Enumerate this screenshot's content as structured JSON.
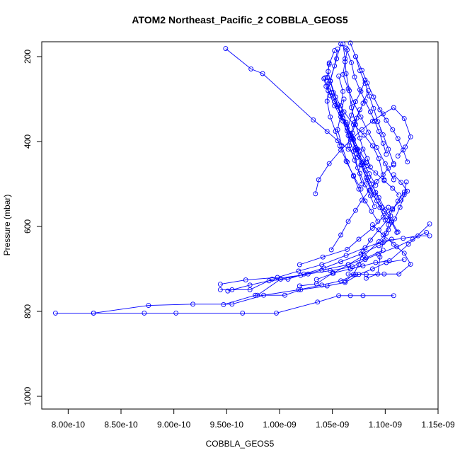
{
  "chart_data": {
    "type": "line",
    "title": "ATOM2 Northeast_Pacific_2 COBBLA_GEOS5",
    "xlabel": "COBBLA_GEOS5",
    "ylabel": "Pressure (mbar)",
    "xlim": [
      7.75e-10,
      1.15e-09
    ],
    "ylim": [
      1030,
      165
    ],
    "y_reversed": true,
    "x_ticks": [
      {
        "value": 8e-10,
        "label": "8.00e-10"
      },
      {
        "value": 8.5e-10,
        "label": "8.50e-10"
      },
      {
        "value": 9e-10,
        "label": "9.00e-10"
      },
      {
        "value": 9.5e-10,
        "label": "9.50e-10"
      },
      {
        "value": 1e-09,
        "label": "1.00e-09"
      },
      {
        "value": 1.05e-09,
        "label": "1.05e-09"
      },
      {
        "value": 1.1e-09,
        "label": "1.10e-09"
      },
      {
        "value": 1.15e-09,
        "label": "1.15e-09"
      }
    ],
    "y_ticks": [
      {
        "value": 200,
        "label": "200"
      },
      {
        "value": 400,
        "label": "400"
      },
      {
        "value": 600,
        "label": "600"
      },
      {
        "value": 800,
        "label": "800"
      },
      {
        "value": 1000,
        "label": "1000"
      }
    ],
    "color": "#0000ff",
    "marker": "open-circle",
    "grid": false,
    "legend": "none",
    "series": [
      {
        "x": [
          7.88e-10,
          8.24e-10,
          8.72e-10,
          9.02e-10,
          9.65e-10,
          9.97e-10,
          1.036e-09,
          1.056e-09,
          1.067e-09,
          1.079e-09,
          1.108e-09
        ],
        "y": [
          804,
          804,
          804,
          804,
          804,
          804,
          778,
          763,
          763,
          763,
          763
        ]
      },
      {
        "x": [
          8.24e-10,
          8.76e-10,
          9.18e-10,
          9.55e-10,
          9.85e-10,
          1.018e-09,
          1.04e-09,
          1.058e-09,
          1.072e-09
        ],
        "y": [
          804,
          786,
          783,
          783,
          762,
          749,
          738,
          728,
          713
        ]
      },
      {
        "x": [
          9.47e-10,
          9.77e-10,
          1.005e-09,
          1.02e-09,
          1.045e-09,
          1.062e-09,
          1.075e-09,
          1.088e-09,
          1.101e-09,
          1.118e-09
        ],
        "y": [
          784,
          762,
          762,
          749,
          740,
          732,
          713,
          700,
          685,
          678
        ]
      },
      {
        "x": [
          9.44e-10,
          9.55e-10,
          9.72e-10,
          9.93e-10,
          1.02e-09,
          1.04e-09,
          1.065e-09,
          1.082e-09,
          1.098e-09
        ],
        "y": [
          749,
          749,
          749,
          724,
          715,
          703,
          690,
          674,
          656
        ]
      },
      {
        "x": [
          9.51e-10,
          9.72e-10,
          9.9e-10,
          1.008e-09,
          1.023e-09,
          1.042e-09,
          1.058e-09,
          1.077e-09,
          1.094e-09,
          1.106e-09
        ],
        "y": [
          752,
          738,
          728,
          724,
          712,
          698,
          683,
          665,
          645,
          630
        ]
      },
      {
        "x": [
          9.44e-10,
          9.68e-10,
          9.98e-10,
          1.018e-09,
          1.04e-09,
          1.063e-09,
          1.081e-09,
          1.099e-09,
          1.117e-09,
          1.131e-09,
          1.142e-09
        ],
        "y": [
          736,
          726,
          720,
          705,
          690,
          668,
          650,
          634,
          628,
          622,
          622
        ]
      },
      {
        "x": [
          9.79e-10,
          1.001e-09,
          1.027e-09,
          1.048e-09,
          1.069e-09,
          1.081e-09,
          1.093e-09,
          1.111e-09,
          1.126e-09,
          1.139e-09
        ],
        "y": [
          762,
          724,
          712,
          704,
          695,
          678,
          665,
          648,
          630,
          614
        ]
      },
      {
        "x": [
          1.019e-09,
          1.035e-09,
          1.05e-09,
          1.067e-09,
          1.079e-09,
          1.091e-09,
          1.104e-09,
          1.122e-09,
          1.142e-09
        ],
        "y": [
          740,
          735,
          710,
          700,
          693,
          685,
          681,
          642,
          594
        ]
      },
      {
        "x": [
          1.019e-09,
          1.041e-09,
          1.064e-09,
          1.075e-09,
          1.088e-09,
          1.098e-09,
          1.107e-09,
          1.115e-09,
          1.121e-09,
          1.115e-09,
          1.108e-09
        ],
        "y": [
          690,
          672,
          654,
          630,
          604,
          578,
          558,
          538,
          517,
          496,
          478
        ]
      },
      {
        "x": [
          1.035e-09,
          1.051e-09,
          1.065e-09,
          1.08e-09,
          1.094e-09,
          1.103e-09,
          1.109e-09,
          1.114e-09,
          1.118e-09,
          1.12e-09
        ],
        "y": [
          725,
          710,
          690,
          668,
          636,
          608,
          582,
          555,
          525,
          495
        ]
      },
      {
        "x": [
          1.062e-09,
          1.07e-09,
          1.075e-09,
          1.079e-09,
          1.086e-09,
          1.094e-09,
          1.102e-09,
          1.107e-09,
          1.112e-09,
          1.118e-09
        ],
        "y": [
          729,
          713,
          689,
          659,
          632,
          608,
          585,
          561,
          540,
          519
        ]
      },
      {
        "x": [
          1.065e-09,
          1.082e-09,
          1.099e-09,
          1.113e-09,
          1.124e-09,
          1.118e-09,
          1.108e-09,
          1.098e-09,
          1.088e-09
        ],
        "y": [
          712,
          713,
          712,
          712,
          689,
          663,
          642,
          620,
          596
        ]
      },
      {
        "x": [
          1.082e-09,
          1.093e-09,
          1.095e-09,
          1.098e-09,
          1.101e-09,
          1.103e-09,
          1.105e-09,
          1.103e-09
        ],
        "y": [
          722,
          712,
          672,
          638,
          616,
          596,
          575,
          555
        ]
      },
      {
        "x": [
          1.049e-09,
          1.058e-09,
          1.065e-09,
          1.072e-09,
          1.078e-09,
          1.085e-09,
          1.092e-09,
          1.098e-09,
          1.103e-09,
          1.108e-09
        ],
        "y": [
          655,
          620,
          588,
          562,
          538,
          515,
          494,
          478,
          463,
          455
        ]
      },
      {
        "x": [
          1.034e-09,
          1.037e-09,
          1.047e-09,
          1.058e-09,
          1.068e-09,
          1.078e-09,
          1.088e-09,
          1.098e-09,
          1.108e-09,
          1.118e-09,
          1.124e-09,
          1.119e-09,
          1.112e-09
        ],
        "y": [
          523,
          490,
          452,
          420,
          395,
          372,
          352,
          335,
          320,
          346,
          389,
          413,
          434
        ]
      },
      {
        "x": [
          9.49e-10,
          9.73e-10,
          9.84e-10,
          1.032e-09,
          1.045e-09,
          1.055e-09,
          1.065e-09,
          1.074e-09,
          1.083e-09,
          1.091e-09,
          1.099e-09,
          1.107e-09,
          1.113e-09
        ],
        "y": [
          181,
          229,
          240,
          349,
          376,
          398,
          418,
          437,
          456,
          474,
          492,
          510,
          526
        ]
      },
      {
        "x": [
          1.058e-09,
          1.054e-09,
          1.048e-09,
          1.053e-09,
          1.061e-09,
          1.07e-09,
          1.08e-09,
          1.088e-09,
          1.094e-09,
          1.099e-09
        ],
        "y": [
          170,
          205,
          257,
          295,
          330,
          360,
          385,
          410,
          440,
          490
        ]
      },
      {
        "x": [
          1.06e-09,
          1.062e-09,
          1.063e-09,
          1.066e-09,
          1.068e-09,
          1.072e-09,
          1.076e-09,
          1.079e-09,
          1.083e-09,
          1.086e-09
        ],
        "y": [
          170,
          205,
          240,
          280,
          320,
          360,
          392,
          418,
          440,
          460
        ]
      },
      {
        "x": [
          1.063e-09,
          1.068e-09,
          1.071e-09,
          1.076e-09,
          1.081e-09,
          1.086e-09,
          1.09e-09,
          1.094e-09,
          1.098e-09,
          1.101e-09
        ],
        "y": [
          180,
          214,
          248,
          278,
          305,
          330,
          352,
          376,
          404,
          430
        ]
      },
      {
        "x": [
          1.067e-09,
          1.072e-09,
          1.076e-09,
          1.081e-09,
          1.085e-09,
          1.089e-09,
          1.093e-09,
          1.098e-09,
          1.103e-09,
          1.108e-09
        ],
        "y": [
          168,
          200,
          233,
          263,
          293,
          322,
          353,
          384,
          418,
          452
        ]
      },
      {
        "x": [
          1.072e-09,
          1.078e-09,
          1.083e-09,
          1.089e-09,
          1.095e-09,
          1.101e-09,
          1.107e-09,
          1.112e-09,
          1.117e-09,
          1.121e-09
        ],
        "y": [
          200,
          232,
          262,
          295,
          325,
          350,
          372,
          393,
          420,
          448
        ]
      },
      {
        "x": [
          1.055e-09,
          1.052e-09,
          1.047e-09,
          1.045e-09,
          1.048e-09,
          1.053e-09,
          1.057e-09,
          1.063e-09,
          1.07e-09,
          1.077e-09
        ],
        "y": [
          182,
          222,
          262,
          305,
          342,
          376,
          410,
          446,
          480,
          512
        ]
      },
      {
        "x": [
          1.052e-09,
          1.047e-09,
          1.045e-09,
          1.049e-09,
          1.055e-09,
          1.06e-09,
          1.065e-09,
          1.07e-09,
          1.074e-09,
          1.078e-09
        ],
        "y": [
          186,
          218,
          249,
          284,
          318,
          352,
          386,
          423,
          462,
          500
        ]
      },
      {
        "x": [
          1.043e-09,
          1.046e-09,
          1.052e-09,
          1.058e-09,
          1.063e-09,
          1.068e-09,
          1.073e-09,
          1.079e-09,
          1.085e-09,
          1.091e-09
        ],
        "y": [
          250,
          280,
          306,
          333,
          360,
          390,
          418,
          448,
          476,
          503
        ]
      },
      {
        "x": [
          1.056e-09,
          1.06e-09,
          1.058e-09,
          1.063e-09,
          1.069e-09,
          1.075e-09,
          1.081e-09,
          1.087e-09,
          1.094e-09,
          1.1e-09,
          1.106e-09,
          1.112e-09
        ],
        "y": [
          246,
          282,
          316,
          355,
          393,
          432,
          468,
          500,
          532,
          560,
          587,
          613
        ]
      },
      {
        "x": [
          1.061e-09,
          1.058e-09,
          1.055e-09,
          1.059e-09,
          1.064e-09,
          1.07e-09,
          1.075e-09,
          1.081e-09,
          1.087e-09,
          1.093e-09
        ],
        "y": [
          300,
          335,
          372,
          410,
          448,
          482,
          512,
          540,
          564,
          588
        ]
      },
      {
        "x": [
          1.076e-09,
          1.071e-09,
          1.067e-09,
          1.072e-09,
          1.077e-09,
          1.082e-09,
          1.086e-09,
          1.092e-09,
          1.099e-09,
          1.106e-09,
          1.111e-09
        ],
        "y": [
          325,
          355,
          385,
          420,
          455,
          485,
          514,
          540,
          565,
          590,
          614
        ]
      },
      {
        "x": [
          1.084e-09,
          1.079e-09,
          1.073e-09,
          1.069e-09,
          1.074e-09,
          1.078e-09,
          1.083e-09,
          1.089e-09,
          1.095e-09,
          1.1e-09
        ],
        "y": [
          280,
          310,
          345,
          380,
          418,
          455,
          490,
          525,
          556,
          585
        ]
      },
      {
        "x": [
          1.081e-09,
          1.077e-09,
          1.072e-09,
          1.068e-09,
          1.064e-09,
          1.066e-09,
          1.071e-09,
          1.076e-09,
          1.081e-09,
          1.086e-09,
          1.09e-09
        ],
        "y": [
          255,
          282,
          306,
          338,
          375,
          410,
          444,
          475,
          502,
          528,
          553
        ]
      },
      {
        "x": [
          1.047e-09,
          1.046e-09,
          1.048e-09,
          1.051e-09,
          1.055e-09,
          1.06e-09,
          1.066e-09,
          1.072e-09,
          1.078e-09,
          1.084e-09,
          1.091e-09,
          1.097e-09
        ],
        "y": [
          215,
          235,
          258,
          285,
          314,
          345,
          380,
          414,
          450,
          485,
          520,
          555
        ]
      },
      {
        "x": [
          1.042e-09,
          1.044e-09,
          1.048e-09,
          1.052e-09,
          1.058e-09,
          1.064e-09,
          1.07e-09,
          1.076e-09,
          1.082e-09
        ],
        "y": [
          252,
          270,
          292,
          316,
          342,
          368,
          395,
          422,
          450
        ]
      },
      {
        "x": [
          1.064e-09,
          1.062e-09,
          1.06e-09,
          1.065e-09,
          1.07e-09,
          1.077e-09,
          1.084e-09,
          1.092e-09,
          1.1e-09,
          1.108e-09
        ],
        "y": [
          184,
          212,
          242,
          276,
          308,
          342,
          378,
          414,
          452,
          490
        ]
      }
    ]
  }
}
